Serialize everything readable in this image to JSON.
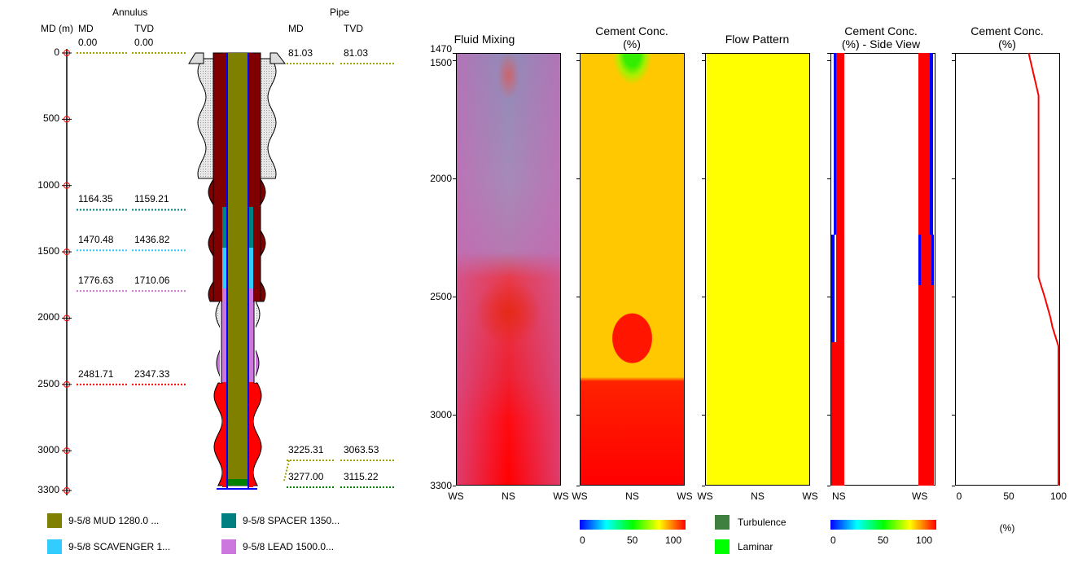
{
  "wellbore": {
    "annulus_header": "Annulus",
    "pipe_header": "Pipe",
    "md_axis_label": "MD (m)",
    "col_md": "MD",
    "col_tvd": "TVD",
    "depth_ticks": [
      "0",
      "500",
      "1000",
      "1500",
      "2000",
      "2500",
      "3000",
      "3300"
    ],
    "annulus_markers": [
      {
        "md": "0.00",
        "tvd": "0.00",
        "color": "#a0a000"
      },
      {
        "md": "1164.35",
        "tvd": "1159.21",
        "color": "#008080"
      },
      {
        "md": "1470.48",
        "tvd": "1436.82",
        "color": "#33ccff"
      },
      {
        "md": "1776.63",
        "tvd": "1710.06",
        "color": "#cc77cc"
      },
      {
        "md": "2481.71",
        "tvd": "2347.33",
        "color": "#ff0000"
      }
    ],
    "pipe_markers": [
      {
        "md": "81.03",
        "tvd": "81.03",
        "color": "#a0a000"
      },
      {
        "md": "3225.31",
        "tvd": "3063.53",
        "color": "#a0a000"
      },
      {
        "md": "3277.00",
        "tvd": "3115.22",
        "color": "#008000"
      }
    ]
  },
  "legend": [
    {
      "label": "9-5/8 MUD 1280.0 ...",
      "color": "#808000"
    },
    {
      "label": "9-5/8 SPACER 1350...",
      "color": "#008080"
    },
    {
      "label": "9-5/8 SCAVENGER 1...",
      "color": "#33ccff"
    },
    {
      "label": "9-5/8 LEAD 1500.0...",
      "color": "#cc77dd"
    }
  ],
  "chart_data": [
    {
      "type": "heatmap",
      "title": "Fluid Mixing",
      "ylim": [
        1470,
        3300
      ],
      "yticks": [
        "1470",
        "1500",
        "2000",
        "2500",
        "3000",
        "3300"
      ],
      "xticks": [
        "WS",
        "NS",
        "WS"
      ]
    },
    {
      "type": "heatmap",
      "title": "Cement Conc.\n(%)",
      "ylim": [
        1470,
        3300
      ],
      "xticks": [
        "WS",
        "NS",
        "WS"
      ],
      "colorbar": {
        "ticks": [
          "0",
          "50",
          "100"
        ],
        "colors": [
          "#0000ff",
          "#00ffff",
          "#00ff00",
          "#ffff00",
          "#ff0000"
        ]
      }
    },
    {
      "type": "heatmap",
      "title": "Flow Pattern",
      "ylim": [
        1470,
        3300
      ],
      "xticks": [
        "WS",
        "NS",
        "WS"
      ],
      "legend": [
        {
          "label": "Turbulence",
          "color": "#3f7f3f"
        },
        {
          "label": "Laminar",
          "color": "#00ff00"
        }
      ]
    },
    {
      "type": "heatmap",
      "title": "Cement Conc.\n(%) - Side View",
      "ylim": [
        1470,
        3300
      ],
      "xticks": [
        "NS",
        "WS"
      ],
      "colorbar": {
        "ticks": [
          "0",
          "50",
          "100"
        ],
        "colors": [
          "#0000ff",
          "#00ffff",
          "#00ff00",
          "#ffff00",
          "#ff0000"
        ]
      }
    },
    {
      "type": "line",
      "title": "Cement Conc.\n(%)",
      "xlabel": "(%)",
      "xlim": [
        0,
        100
      ],
      "xticks": [
        "0",
        "50",
        "100"
      ],
      "ylim": [
        1470,
        3300
      ],
      "color": "#ff0000",
      "series": [
        {
          "x": [
            70,
            75,
            80,
            80,
            86,
            92,
            94,
            100,
            100
          ],
          "y": [
            1470,
            1560,
            1650,
            2420,
            2500,
            2590,
            2630,
            2710,
            3300
          ]
        }
      ]
    }
  ]
}
